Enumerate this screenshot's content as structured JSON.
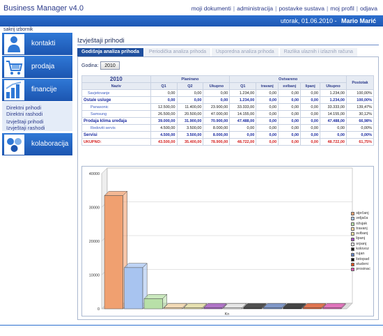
{
  "app": {
    "title": "Business Manager v4.0"
  },
  "top_links": [
    "moji dokumenti",
    "administracija",
    "postavke sustava",
    "moj profil",
    "odjava"
  ],
  "status_bar": {
    "date": "utorak, 01.06.2010",
    "user": "Mario Marić"
  },
  "sidebar": {
    "hide_label": "sakrij izbornik",
    "items": [
      {
        "label": "kontakti"
      },
      {
        "label": "prodaja"
      },
      {
        "label": "financije"
      },
      {
        "label": "kolaboracija"
      }
    ],
    "submenu": [
      "Direktni prihodi",
      "Direktni rashodi",
      "Izvještaji prihodi",
      "Izvještaji rashodi"
    ]
  },
  "main": {
    "title": "Izvještaji prihodi",
    "tabs": [
      "Godišnja analiza prihoda",
      "Periodička analiza prihoda",
      "Usporedna analiza prihoda",
      "Razlika ulaznih i izlaznih računa"
    ],
    "year_label": "Godina:",
    "year_value": "2010"
  },
  "table": {
    "year": "2010",
    "group_headers": {
      "planned": "Planirano",
      "actual": "Ostvareno"
    },
    "columns": [
      "Naziv",
      "Q1",
      "Q2",
      "Ukupno",
      "Q1",
      "travanj",
      "svibanj",
      "lipanj",
      "Ukupno",
      "Postotak"
    ],
    "rows": [
      {
        "kind": "l1",
        "cells": [
          "Savjetovanje",
          "0,00",
          "0,00",
          "0,00",
          "1.234,00",
          "0,00",
          "0,00",
          "0,00",
          "1.234,00",
          "100,00%"
        ]
      },
      {
        "kind": "cat",
        "cells": [
          "Ostale usluge",
          "0,00",
          "0,00",
          "0,00",
          "1.234,00",
          "0,00",
          "0,00",
          "0,00",
          "1.234,00",
          "100,00%"
        ]
      },
      {
        "kind": "sub",
        "cells": [
          "Panasonic",
          "12.500,00",
          "11.400,00",
          "23.900,00",
          "33.333,00",
          "0,00",
          "0,00",
          "0,00",
          "33.333,00",
          "139,47%"
        ]
      },
      {
        "kind": "sub",
        "cells": [
          "Samsung",
          "26.500,00",
          "20.500,00",
          "47.000,00",
          "14.155,00",
          "0,00",
          "0,00",
          "0,00",
          "14.155,00",
          "30,12%"
        ]
      },
      {
        "kind": "cat",
        "cells": [
          "Prodaja klima uređaja",
          "39.000,00",
          "31.900,00",
          "70.900,00",
          "47.488,00",
          "0,00",
          "0,00",
          "0,00",
          "47.488,00",
          "66,98%"
        ]
      },
      {
        "kind": "sub",
        "cells": [
          "Redoviti servis",
          "4.500,00",
          "3.500,00",
          "8.000,00",
          "0,00",
          "0,00",
          "0,00",
          "0,00",
          "0,00",
          "0,00%"
        ]
      },
      {
        "kind": "cat",
        "cells": [
          "Servisi",
          "4.500,00",
          "3.500,00",
          "8.000,00",
          "0,00",
          "0,00",
          "0,00",
          "0,00",
          "0,00",
          "0,00%"
        ]
      },
      {
        "kind": "tot",
        "cells": [
          "UKUPNO:",
          "43.500,00",
          "35.400,00",
          "78.900,00",
          "48.722,00",
          "0,00",
          "0,00",
          "0,00",
          "48.722,00",
          "61,75%"
        ]
      }
    ]
  },
  "chart_data": {
    "type": "bar",
    "categories": [
      "Kn"
    ],
    "xlabel": "Kn",
    "ylim": [
      0,
      40000
    ],
    "yticks": [
      "0",
      "10000",
      "20000",
      "30000",
      "40000"
    ],
    "grid": true,
    "legend_position": "right",
    "series": [
      {
        "name": "siječanj",
        "color": "#f0a070",
        "values": [
          33500
        ]
      },
      {
        "name": "veljača",
        "color": "#a8c4f0",
        "values": [
          12200
        ]
      },
      {
        "name": "ožujak",
        "color": "#b8e0a8",
        "values": [
          3000
        ]
      },
      {
        "name": "travanj",
        "color": "#f8d8a8",
        "values": [
          0
        ]
      },
      {
        "name": "svibanj",
        "color": "#e8e0a0",
        "values": [
          0
        ]
      },
      {
        "name": "lipanj",
        "color": "#a050c0",
        "values": [
          0
        ]
      },
      {
        "name": "srpanj",
        "color": "#e8e8e8",
        "values": [
          0
        ]
      },
      {
        "name": "kolovoz",
        "color": "#202020",
        "values": [
          0
        ]
      },
      {
        "name": "rujan",
        "color": "#6080c0",
        "values": [
          0
        ]
      },
      {
        "name": "listopad",
        "color": "#101010",
        "values": [
          0
        ]
      },
      {
        "name": "studeni",
        "color": "#e05020",
        "values": [
          0
        ]
      },
      {
        "name": "prosinac",
        "color": "#e050b0",
        "values": [
          0
        ]
      }
    ]
  }
}
